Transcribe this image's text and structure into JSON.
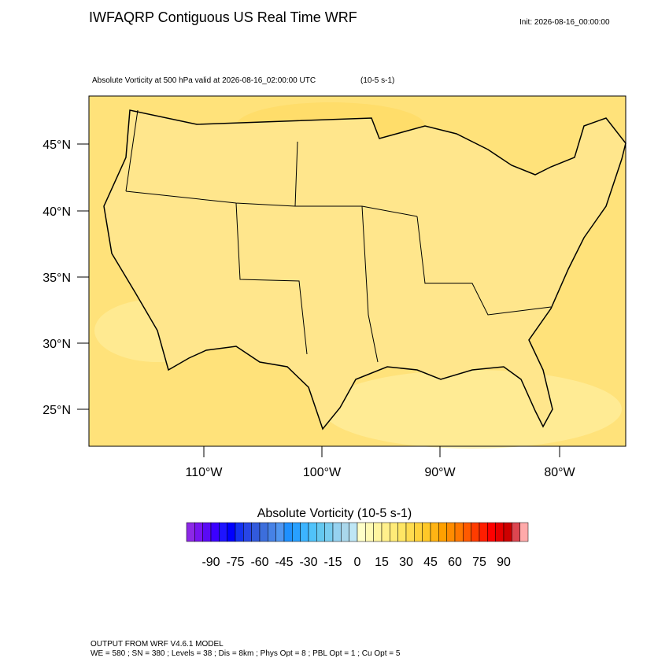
{
  "header": {
    "title": "IWFAQRP Contiguous US Real Time WRF",
    "init": "Init: 2026-08-16_00:00:00"
  },
  "map": {
    "subtitle": "Absolute Vorticity at 500 hPa valid at 2026-08-16_02:00:00 UTC",
    "units": "(10-5 s-1)",
    "lat_labels": [
      "45°N",
      "40°N",
      "35°N",
      "30°N",
      "25°N"
    ],
    "lon_labels": [
      "110°W",
      "100°W",
      "90°W",
      "80°W"
    ]
  },
  "colorbar": {
    "title": "Absolute Vorticity  (10-5 s-1)",
    "clim": [
      -105,
      105
    ],
    "ticks": [
      -90,
      -75,
      -60,
      -45,
      -30,
      -15,
      0,
      15,
      30,
      45,
      60,
      75,
      90
    ],
    "colors": [
      "#8c28e6",
      "#7814f0",
      "#5a0af5",
      "#3c00ff",
      "#1e14ff",
      "#0000ff",
      "#1432f0",
      "#2846e6",
      "#325adc",
      "#3c6edc",
      "#4682e6",
      "#5096f0",
      "#1e90ff",
      "#28a0ff",
      "#3cb4ff",
      "#50c3fa",
      "#64c8f0",
      "#78cdf0",
      "#96d2f0",
      "#aad7eb",
      "#bee6f5",
      "#ffffc8",
      "#fffab4",
      "#fff5a0",
      "#fff08c",
      "#ffeb78",
      "#ffe664",
      "#ffdc50",
      "#ffd23c",
      "#ffc828",
      "#ffb414",
      "#ffa000",
      "#ff8c00",
      "#ff7800",
      "#ff5a00",
      "#ff3c00",
      "#ff1e00",
      "#ff0000",
      "#e60000",
      "#cd0000",
      "#dc4650",
      "#ffaaaa"
    ]
  },
  "footer": {
    "line1": "OUTPUT FROM WRF V4.6.1 MODEL",
    "line2": "WE = 580 ; SN = 380 ; Levels = 38 ; Dis = 8km ; Phys Opt = 8 ; PBL Opt = 1 ; Cu Opt = 5"
  }
}
